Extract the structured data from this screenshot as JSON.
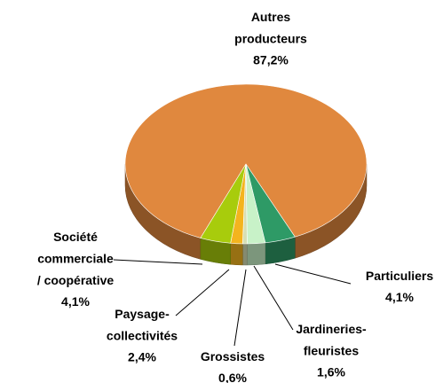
{
  "chart_data": {
    "type": "pie",
    "categories": [
      "Autres\nproducteurs",
      "Société\ncommerciale\n/ coopérative",
      "Paysage-\ncollectivités",
      "Grossistes",
      "Jardineries-\nfleuristes",
      "Particuliers"
    ],
    "values": [
      87.2,
      4.1,
      2.4,
      0.6,
      1.6,
      4.1
    ],
    "value_labels": [
      "87,2%",
      "4,1%",
      "2,4%",
      "0,6%",
      "1,6%",
      "4,1%"
    ],
    "colors": [
      "#e0883e",
      "#2e9a66",
      "#c8f2c8",
      "#d6dfb4",
      "#f4b41e",
      "#a8cc0c"
    ]
  }
}
